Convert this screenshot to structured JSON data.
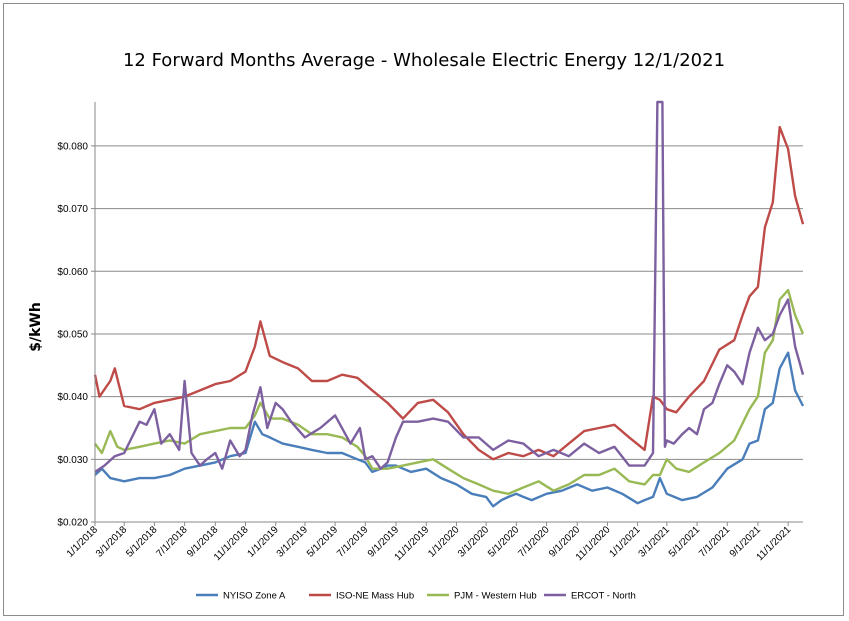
{
  "chart_data": {
    "type": "line",
    "title": "12 Forward Months Average - Wholesale Electric Energy 12/1/2021",
    "xlabel": "",
    "ylabel": "$/kWh",
    "ylim": [
      0.02,
      0.087
    ],
    "xlim": [
      "2018-01-01",
      "2021-12-01"
    ],
    "y_ticks": [
      "$0.020",
      "$0.030",
      "$0.040",
      "$0.050",
      "$0.060",
      "$0.070",
      "$0.080"
    ],
    "x_ticks": [
      "1/1/2018",
      "3/1/2018",
      "5/1/2018",
      "7/1/2018",
      "9/1/2018",
      "11/1/2018",
      "1/1/2019",
      "3/1/2019",
      "5/1/2019",
      "7/1/2019",
      "9/1/2019",
      "11/1/2019",
      "1/1/2020",
      "3/1/2020",
      "5/1/2020",
      "7/1/2020",
      "9/1/2020",
      "11/1/2020",
      "1/1/2021",
      "3/1/2021",
      "5/1/2021",
      "7/1/2021",
      "9/1/2021",
      "11/1/2021"
    ],
    "grid": "horizontal",
    "legend": "bottom",
    "series": [
      {
        "name": "NYISO Zone A",
        "color": "#4a7ebb",
        "x": [
          "2018-01-01",
          "2018-01-15",
          "2018-02-01",
          "2018-03-01",
          "2018-04-01",
          "2018-05-01",
          "2018-06-01",
          "2018-07-01",
          "2018-08-01",
          "2018-09-01",
          "2018-10-01",
          "2018-11-01",
          "2018-11-20",
          "2018-12-05",
          "2018-12-20",
          "2019-01-15",
          "2019-02-15",
          "2019-03-15",
          "2019-04-15",
          "2019-05-15",
          "2019-06-15",
          "2019-07-01",
          "2019-07-15",
          "2019-08-01",
          "2019-08-15",
          "2019-09-01",
          "2019-09-15",
          "2019-10-01",
          "2019-11-01",
          "2019-12-01",
          "2020-01-01",
          "2020-02-01",
          "2020-03-01",
          "2020-03-15",
          "2020-04-01",
          "2020-04-15",
          "2020-05-01",
          "2020-05-15",
          "2020-06-01",
          "2020-07-01",
          "2020-08-01",
          "2020-09-01",
          "2020-10-01",
          "2020-11-01",
          "2020-12-01",
          "2021-01-01",
          "2021-01-15",
          "2021-02-01",
          "2021-02-15",
          "2021-03-01",
          "2021-04-01",
          "2021-05-01",
          "2021-06-01",
          "2021-07-01",
          "2021-08-01",
          "2021-08-15",
          "2021-09-01",
          "2021-09-15",
          "2021-10-01",
          "2021-10-15",
          "2021-11-01",
          "2021-11-15",
          "2021-12-01"
        ],
        "values": [
          0.0275,
          0.0285,
          0.027,
          0.0265,
          0.027,
          0.027,
          0.0275,
          0.0285,
          0.029,
          0.0295,
          0.0305,
          0.031,
          0.036,
          0.034,
          0.0335,
          0.0325,
          0.032,
          0.0315,
          0.031,
          0.031,
          0.03,
          0.0295,
          0.028,
          0.0285,
          0.029,
          0.029,
          0.0285,
          0.028,
          0.0285,
          0.027,
          0.026,
          0.0245,
          0.024,
          0.0225,
          0.0235,
          0.024,
          0.0245,
          0.024,
          0.0235,
          0.0245,
          0.025,
          0.026,
          0.025,
          0.0255,
          0.0245,
          0.023,
          0.0235,
          0.024,
          0.027,
          0.0245,
          0.0235,
          0.024,
          0.0255,
          0.0285,
          0.03,
          0.0325,
          0.033,
          0.038,
          0.039,
          0.0445,
          0.047,
          0.041,
          0.0385
        ]
      },
      {
        "name": "ISO-NE Mass Hub",
        "color": "#be4b48",
        "x": [
          "2018-01-01",
          "2018-01-10",
          "2018-02-01",
          "2018-02-10",
          "2018-03-01",
          "2018-04-01",
          "2018-05-01",
          "2018-06-01",
          "2018-07-01",
          "2018-08-01",
          "2018-09-01",
          "2018-10-01",
          "2018-11-01",
          "2018-11-20",
          "2018-12-01",
          "2018-12-20",
          "2019-01-15",
          "2019-02-15",
          "2019-03-15",
          "2019-04-15",
          "2019-05-15",
          "2019-06-15",
          "2019-07-15",
          "2019-08-15",
          "2019-09-15",
          "2019-10-15",
          "2019-11-15",
          "2019-12-15",
          "2020-01-15",
          "2020-02-15",
          "2020-03-15",
          "2020-04-15",
          "2020-05-15",
          "2020-06-15",
          "2020-07-15",
          "2020-08-15",
          "2020-09-15",
          "2020-10-15",
          "2020-11-15",
          "2020-12-15",
          "2021-01-15",
          "2021-02-01",
          "2021-02-15",
          "2021-03-01",
          "2021-03-20",
          "2021-04-15",
          "2021-05-15",
          "2021-06-15",
          "2021-07-15",
          "2021-08-01",
          "2021-08-15",
          "2021-09-01",
          "2021-09-15",
          "2021-10-01",
          "2021-10-15",
          "2021-11-01",
          "2021-11-15",
          "2021-12-01"
        ],
        "values": [
          0.0435,
          0.04,
          0.0425,
          0.0445,
          0.0385,
          0.038,
          0.039,
          0.0395,
          0.04,
          0.041,
          0.042,
          0.0425,
          0.044,
          0.048,
          0.052,
          0.0465,
          0.0455,
          0.0445,
          0.0425,
          0.0425,
          0.0435,
          0.043,
          0.041,
          0.039,
          0.0365,
          0.039,
          0.0395,
          0.0375,
          0.034,
          0.0315,
          0.03,
          0.031,
          0.0305,
          0.0315,
          0.0305,
          0.0325,
          0.0345,
          0.035,
          0.0355,
          0.0335,
          0.0315,
          0.04,
          0.0395,
          0.038,
          0.0375,
          0.04,
          0.0425,
          0.0475,
          0.049,
          0.053,
          0.056,
          0.0575,
          0.067,
          0.071,
          0.083,
          0.0795,
          0.072,
          0.0675
        ]
      },
      {
        "name": "PJM - Western Hub",
        "color": "#98b954",
        "x": [
          "2018-01-01",
          "2018-01-15",
          "2018-02-01",
          "2018-02-15",
          "2018-03-01",
          "2018-04-01",
          "2018-05-01",
          "2018-06-01",
          "2018-07-01",
          "2018-08-01",
          "2018-09-01",
          "2018-10-01",
          "2018-11-01",
          "2018-11-20",
          "2018-12-01",
          "2018-12-20",
          "2019-01-15",
          "2019-02-15",
          "2019-03-15",
          "2019-04-15",
          "2019-05-15",
          "2019-06-15",
          "2019-07-01",
          "2019-07-15",
          "2019-08-15",
          "2019-09-15",
          "2019-10-15",
          "2019-11-15",
          "2019-12-15",
          "2020-01-15",
          "2020-02-15",
          "2020-03-15",
          "2020-04-15",
          "2020-05-15",
          "2020-06-15",
          "2020-07-15",
          "2020-08-15",
          "2020-09-15",
          "2020-10-15",
          "2020-11-15",
          "2020-12-15",
          "2021-01-15",
          "2021-02-01",
          "2021-02-15",
          "2021-03-01",
          "2021-03-20",
          "2021-04-15",
          "2021-05-15",
          "2021-06-15",
          "2021-07-15",
          "2021-08-15",
          "2021-09-01",
          "2021-09-15",
          "2021-10-01",
          "2021-10-15",
          "2021-11-01",
          "2021-11-15",
          "2021-12-01"
        ],
        "values": [
          0.0325,
          0.031,
          0.0345,
          0.032,
          0.0315,
          0.032,
          0.0325,
          0.033,
          0.0325,
          0.034,
          0.0345,
          0.035,
          0.035,
          0.037,
          0.039,
          0.0365,
          0.0365,
          0.0355,
          0.034,
          0.034,
          0.0335,
          0.032,
          0.0305,
          0.0285,
          0.0285,
          0.029,
          0.0295,
          0.03,
          0.0285,
          0.027,
          0.026,
          0.025,
          0.0245,
          0.0255,
          0.0265,
          0.025,
          0.026,
          0.0275,
          0.0275,
          0.0285,
          0.0265,
          0.026,
          0.0275,
          0.0275,
          0.03,
          0.0285,
          0.028,
          0.0295,
          0.031,
          0.033,
          0.038,
          0.04,
          0.047,
          0.049,
          0.0555,
          0.057,
          0.053,
          0.05
        ]
      },
      {
        "name": "ERCOT - North",
        "color": "#7d60a0",
        "x": [
          "2018-01-01",
          "2018-01-20",
          "2018-02-10",
          "2018-03-01",
          "2018-04-01",
          "2018-04-15",
          "2018-05-01",
          "2018-05-15",
          "2018-06-01",
          "2018-06-20",
          "2018-07-01",
          "2018-07-15",
          "2018-08-01",
          "2018-08-15",
          "2018-09-01",
          "2018-09-15",
          "2018-10-01",
          "2018-10-20",
          "2018-11-01",
          "2018-11-15",
          "2018-12-01",
          "2018-12-15",
          "2019-01-01",
          "2019-01-15",
          "2019-02-01",
          "2019-03-01",
          "2019-04-01",
          "2019-05-01",
          "2019-06-01",
          "2019-06-20",
          "2019-07-01",
          "2019-07-15",
          "2019-08-01",
          "2019-08-15",
          "2019-09-01",
          "2019-09-15",
          "2019-10-15",
          "2019-11-15",
          "2019-12-15",
          "2020-01-15",
          "2020-02-15",
          "2020-03-15",
          "2020-04-15",
          "2020-05-15",
          "2020-06-15",
          "2020-07-15",
          "2020-08-15",
          "2020-09-15",
          "2020-10-15",
          "2020-11-15",
          "2020-12-15",
          "2021-01-15",
          "2021-02-01",
          "2021-02-10",
          "2021-02-12",
          "2021-02-20",
          "2021-02-25",
          "2021-03-01",
          "2021-03-15",
          "2021-04-01",
          "2021-04-15",
          "2021-05-01",
          "2021-05-15",
          "2021-06-01",
          "2021-06-15",
          "2021-07-01",
          "2021-07-15",
          "2021-08-01",
          "2021-08-15",
          "2021-09-01",
          "2021-09-15",
          "2021-10-01",
          "2021-10-15",
          "2021-11-01",
          "2021-11-15",
          "2021-12-01"
        ],
        "values": [
          0.028,
          0.029,
          0.0305,
          0.031,
          0.036,
          0.0355,
          0.038,
          0.0325,
          0.034,
          0.0315,
          0.0425,
          0.031,
          0.029,
          0.03,
          0.031,
          0.0285,
          0.033,
          0.0305,
          0.0315,
          0.037,
          0.0415,
          0.035,
          0.039,
          0.038,
          0.036,
          0.0335,
          0.035,
          0.037,
          0.0325,
          0.035,
          0.03,
          0.0305,
          0.0285,
          0.0295,
          0.0335,
          0.036,
          0.036,
          0.0365,
          0.036,
          0.0335,
          0.0335,
          0.0315,
          0.033,
          0.0325,
          0.0305,
          0.0315,
          0.0305,
          0.0325,
          0.031,
          0.032,
          0.029,
          0.029,
          0.031,
          0.087,
          0.087,
          0.087,
          0.032,
          0.033,
          0.0325,
          0.034,
          0.035,
          0.034,
          0.038,
          0.039,
          0.042,
          0.045,
          0.044,
          0.042,
          0.047,
          0.051,
          0.049,
          0.05,
          0.053,
          0.0555,
          0.048,
          0.0435
        ]
      }
    ]
  }
}
